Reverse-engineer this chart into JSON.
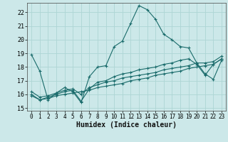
{
  "xlabel": "Humidex (Indice chaleur)",
  "background_color": "#cce8e8",
  "grid_color": "#aed4d4",
  "line_color": "#1a6b6b",
  "xlim": [
    -0.5,
    23.5
  ],
  "ylim": [
    14.8,
    22.7
  ],
  "yticks": [
    15,
    16,
    17,
    18,
    19,
    20,
    21,
    22
  ],
  "xticks": [
    0,
    1,
    2,
    3,
    4,
    5,
    6,
    7,
    8,
    9,
    10,
    11,
    12,
    13,
    14,
    15,
    16,
    17,
    18,
    19,
    20,
    21,
    22,
    23
  ],
  "series": [
    {
      "x": [
        0,
        1,
        2,
        3,
        4,
        5,
        6,
        7,
        8,
        9,
        10,
        11,
        12,
        13,
        14,
        15,
        16,
        17,
        18,
        19,
        20,
        21,
        22,
        23
      ],
      "y": [
        18.9,
        17.7,
        15.6,
        16.1,
        16.5,
        16.2,
        15.4,
        17.3,
        18.0,
        18.1,
        19.5,
        19.9,
        21.2,
        22.5,
        22.2,
        21.5,
        20.4,
        20.0,
        19.5,
        19.4,
        18.3,
        17.5,
        17.1,
        18.5
      ]
    },
    {
      "x": [
        0,
        1,
        2,
        3,
        4,
        5,
        6,
        7,
        8,
        9,
        10,
        11,
        12,
        13,
        14,
        15,
        16,
        17,
        18,
        19,
        20,
        21,
        22,
        23
      ],
      "y": [
        16.0,
        15.6,
        15.8,
        16.0,
        16.2,
        16.3,
        15.5,
        16.4,
        16.9,
        17.0,
        17.3,
        17.5,
        17.6,
        17.8,
        17.9,
        18.0,
        18.2,
        18.3,
        18.5,
        18.6,
        18.2,
        17.4,
        18.2,
        18.6
      ]
    },
    {
      "x": [
        0,
        1,
        2,
        3,
        4,
        5,
        6,
        7,
        8,
        9,
        10,
        11,
        12,
        13,
        14,
        15,
        16,
        17,
        18,
        19,
        20,
        21,
        22,
        23
      ],
      "y": [
        15.9,
        15.6,
        15.7,
        15.9,
        16.0,
        16.1,
        16.2,
        16.3,
        16.5,
        16.6,
        16.7,
        16.8,
        17.0,
        17.1,
        17.2,
        17.4,
        17.5,
        17.6,
        17.7,
        17.9,
        18.0,
        18.1,
        18.2,
        18.6
      ]
    },
    {
      "x": [
        0,
        1,
        2,
        3,
        4,
        5,
        6,
        7,
        8,
        9,
        10,
        11,
        12,
        13,
        14,
        15,
        16,
        17,
        18,
        19,
        20,
        21,
        22,
        23
      ],
      "y": [
        16.2,
        15.8,
        15.9,
        16.1,
        16.3,
        16.4,
        16.0,
        16.5,
        16.7,
        16.9,
        17.0,
        17.2,
        17.3,
        17.4,
        17.5,
        17.6,
        17.8,
        17.9,
        18.0,
        18.1,
        18.3,
        18.3,
        18.4,
        18.8
      ]
    }
  ]
}
